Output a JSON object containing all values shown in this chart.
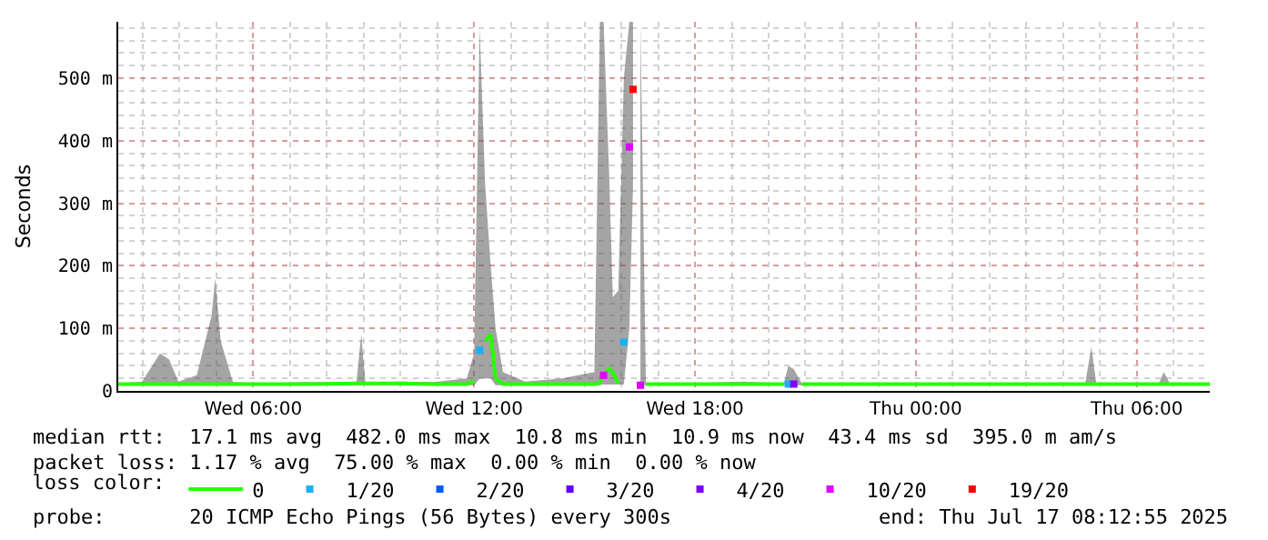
{
  "chart_data": {
    "type": "line",
    "ylabel": "Seconds",
    "xlim": [
      "2025-07-16T02:20",
      "2025-07-17T07:59"
    ],
    "xticks": [
      {
        "value": "2025-07-16T06:00",
        "label": "Wed 06:00"
      },
      {
        "value": "2025-07-16T12:00",
        "label": "Wed 12:00"
      },
      {
        "value": "2025-07-16T18:00",
        "label": "Wed 18:00"
      },
      {
        "value": "2025-07-17T00:00",
        "label": "Thu 00:00"
      },
      {
        "value": "2025-07-17T06:00",
        "label": "Thu 06:00"
      }
    ],
    "ylim": [
      0,
      590
    ],
    "yticks": [
      0,
      {
        "value": 100,
        "label": "100 m"
      },
      {
        "value": 200,
        "label": "200 m"
      },
      {
        "value": 300,
        "label": "300 m"
      },
      {
        "value": 400,
        "label": "400 m"
      },
      {
        "value": 500,
        "label": "500 m"
      }
    ],
    "grid": true,
    "legend": "bottom",
    "legend_title": "loss color:",
    "line_style": "solid",
    "series": [
      {
        "name": "0",
        "color": "#26ff00",
        "x": [
          "2025-07-16T02:20",
          "2025-07-16T02:59",
          "2025-07-16T03:28",
          "2025-07-16T03:43",
          "2025-07-16T03:58",
          "2025-07-16T04:28",
          "2025-07-16T04:52",
          "2025-07-16T04:58",
          "2025-07-16T05:07",
          "2025-07-16T05:27",
          "2025-07-16T06:27",
          "2025-07-16T07:26",
          "2025-07-16T08:48",
          "2025-07-16T08:56",
          "2025-07-16T09:03",
          "2025-07-16T09:55",
          "2025-07-16T10:55",
          "2025-07-16T11:48",
          "2025-07-16T12:00",
          "2025-07-16T12:09",
          "2025-07-16T12:18",
          "2025-07-16T12:27",
          "2025-07-16T12:35",
          "2025-07-16T12:47",
          "2025-07-16T13:23",
          "2025-07-16T14:23",
          "2025-07-16T15:16",
          "2025-07-16T15:25",
          "2025-07-16T15:31",
          "2025-07-16T15:40",
          "2025-07-16T15:46",
          "2025-07-16T15:55",
          "2025-07-16T16:04",
          "2025-07-16T16:13",
          "2025-07-16T16:19",
          "2025-07-16T16:25",
          "2025-07-16T16:31",
          "2025-07-16T16:40",
          "2025-07-16T17:51",
          "2025-07-16T19:20",
          "2025-07-16T20:25",
          "2025-07-16T20:32",
          "2025-07-16T20:41",
          "2025-07-16T20:54",
          "2025-07-16T21:49",
          "2025-07-16T23:48",
          "2025-07-17T01:47",
          "2025-07-17T03:46",
          "2025-07-17T04:36",
          "2025-07-17T04:46",
          "2025-07-17T04:54",
          "2025-07-17T05:45",
          "2025-07-17T06:36",
          "2025-07-17T06:44",
          "2025-07-17T06:54",
          "2025-07-17T07:59"
        ],
        "values": [
          11,
          11,
          11,
          11,
          11,
          11,
          11,
          11,
          11,
          11,
          11,
          11,
          12,
          12,
          12,
          12,
          11,
          11,
          15,
          null,
          80,
          90,
          20,
          11,
          11,
          11,
          11,
          12,
          25,
          35,
          30,
          12,
          null,
          null,
          null,
          null,
          null,
          11,
          11,
          11,
          11,
          null,
          null,
          11,
          11,
          11,
          11,
          11,
          11,
          11,
          11,
          11,
          11,
          11,
          11,
          11
        ],
        "lower": [
          9,
          9,
          9,
          9,
          9,
          9,
          9,
          9,
          9,
          9,
          9,
          9,
          9,
          9,
          9,
          9,
          9,
          9,
          9,
          20,
          20,
          20,
          9,
          9,
          9,
          9,
          9,
          10,
          10,
          10,
          10,
          10,
          10,
          100,
          330,
          null,
          9,
          9,
          9,
          9,
          9,
          9,
          9,
          9,
          9,
          9,
          9,
          9,
          9,
          9,
          9,
          9,
          9,
          9,
          9,
          9
        ],
        "upper": [
          12,
          15,
          60,
          50,
          15,
          25,
          120,
          180,
          80,
          14,
          12,
          14,
          12,
          90,
          12,
          15,
          14,
          20,
          60,
          580,
          330,
          200,
          100,
          30,
          15,
          20,
          30,
          590,
          590,
          350,
          150,
          160,
          500,
          590,
          590,
          null,
          590,
          12,
          12,
          15,
          12,
          40,
          35,
          12,
          12,
          12,
          12,
          12,
          12,
          70,
          12,
          12,
          12,
          30,
          12,
          12
        ]
      },
      {
        "name": "1/20",
        "color": "#1ab0f0",
        "type": "scatter",
        "marker": "square",
        "x": [
          "2025-07-16T12:09",
          "2025-07-16T16:04",
          "2025-07-16T20:32"
        ],
        "values": [
          65,
          78,
          11
        ]
      },
      {
        "name": "2/20",
        "color": "#0059ff",
        "type": "scatter",
        "marker": "square"
      },
      {
        "name": "3/20",
        "color": "#5e00ff",
        "type": "scatter",
        "marker": "square"
      },
      {
        "name": "4/20",
        "color": "#7e00ff",
        "type": "scatter",
        "marker": "square",
        "x": [
          "2025-07-16T20:41"
        ],
        "values": [
          11
        ]
      },
      {
        "name": "10/20",
        "color": "#dd00ff",
        "type": "scatter",
        "marker": "square",
        "x": [
          "2025-07-16T15:31",
          "2025-07-16T16:13",
          "2025-07-16T16:31"
        ],
        "values": [
          25,
          390,
          9
        ]
      },
      {
        "name": "19/20",
        "color": "#ff0000",
        "type": "scatter",
        "marker": "square",
        "x": [
          "2025-07-16T16:19"
        ],
        "values": [
          482
        ]
      }
    ],
    "annotations": [
      "median rtt:  17.1 ms avg  482.0 ms max  10.8 ms min  10.9 ms now  43.4 ms sd  395.0 m am/s",
      "packet loss: 1.17 % avg  75.00 % max  0.00 % min  0.00 % now",
      "probe:       20 ICMP Echo Pings (56 Bytes) every 300s",
      "end: Thu Jul 17 08:12:55 2025"
    ]
  }
}
